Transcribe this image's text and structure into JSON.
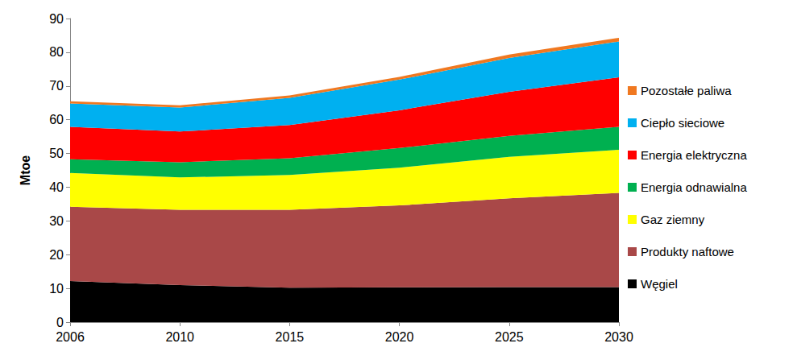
{
  "chart_data": {
    "type": "area",
    "stacked": true,
    "y_label": "Mtoe",
    "categories": [
      "2006",
      "2010",
      "2015",
      "2020",
      "2025",
      "2030"
    ],
    "series": [
      {
        "name": "Węgiel",
        "color": "#000000",
        "values": [
          12.2,
          11.0,
          10.2,
          10.3,
          10.4,
          10.4
        ]
      },
      {
        "name": "Produkty naftowe",
        "color": "#a94848",
        "values": [
          22.0,
          22.3,
          23.1,
          24.3,
          26.3,
          27.9
        ]
      },
      {
        "name": "Gaz ziemny",
        "color": "#ffff00",
        "values": [
          10.0,
          9.6,
          10.3,
          11.2,
          12.3,
          12.8
        ]
      },
      {
        "name": "Energia odnawialna",
        "color": "#00b050",
        "values": [
          4.1,
          4.5,
          5.0,
          5.8,
          6.2,
          6.8
        ]
      },
      {
        "name": "Energia elektryczna",
        "color": "#ff0000",
        "values": [
          9.6,
          9.1,
          9.8,
          11.2,
          13.1,
          14.7
        ]
      },
      {
        "name": "Ciepło sieciowe",
        "color": "#00b0f0",
        "values": [
          6.9,
          7.1,
          8.1,
          9.1,
          10.0,
          10.6
        ]
      },
      {
        "name": "Pozostałe paliwa",
        "color": "#f07820",
        "values": [
          0.7,
          0.7,
          0.7,
          0.8,
          1.0,
          1.1
        ]
      }
    ],
    "ylim": [
      0,
      90
    ],
    "yticks": [
      0,
      10,
      20,
      30,
      40,
      50,
      60,
      70,
      80,
      90
    ],
    "grid": false,
    "legend": "right"
  }
}
